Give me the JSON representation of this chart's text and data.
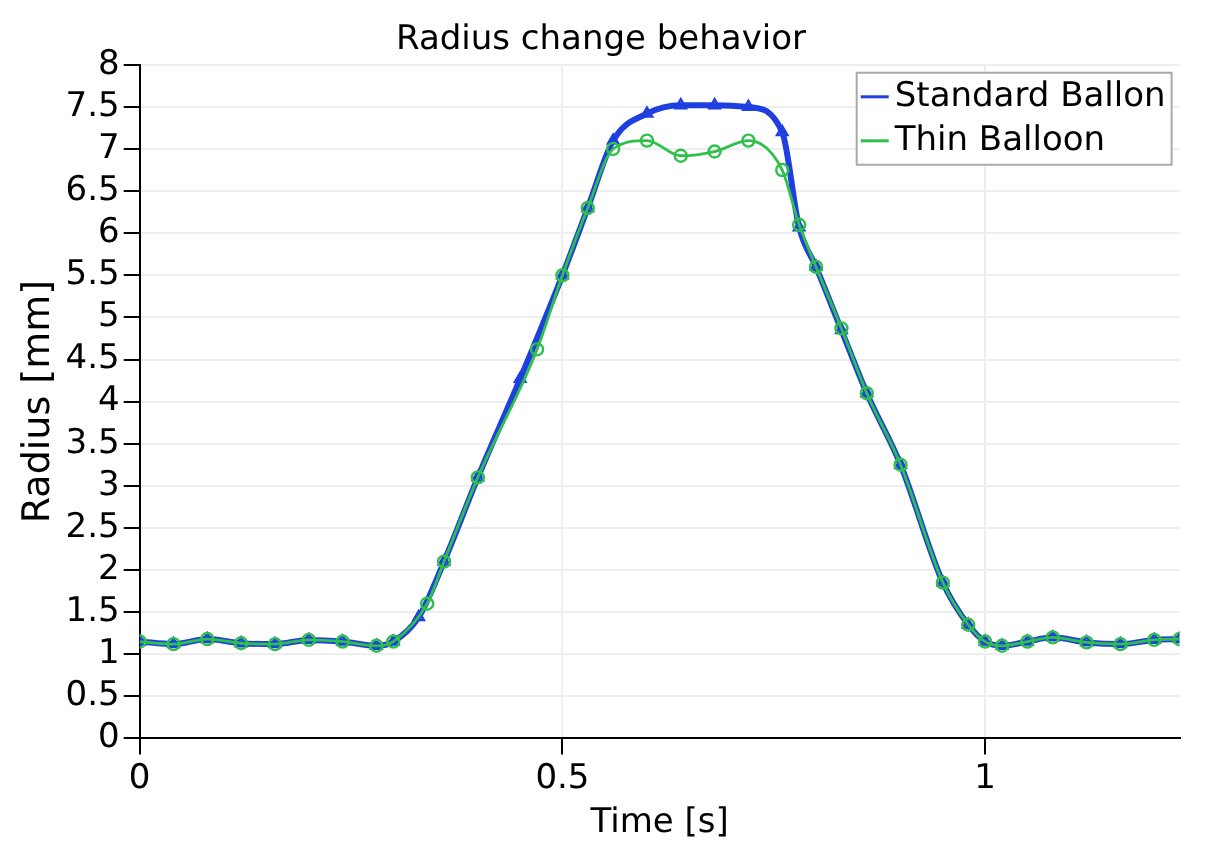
{
  "chart_data": {
    "type": "line",
    "title": "Radius change behavior",
    "xlabel": "Time [s]",
    "ylabel": "Radius [mm]",
    "xlim": [
      0,
      1.23
    ],
    "xticks": [
      0,
      0.5,
      1
    ],
    "ylim": [
      0,
      8
    ],
    "yticks": [
      0,
      0.5,
      1,
      1.5,
      2,
      2.5,
      3,
      3.5,
      4,
      4.5,
      5,
      5.5,
      6,
      6.5,
      7,
      7.5,
      8
    ],
    "grid": true,
    "legend": "top right",
    "line_style": "solid",
    "series": [
      {
        "name": "Standard Ballon",
        "color": "#1f3fe0",
        "marker": "triangle",
        "x": [
          0,
          0.04,
          0.08,
          0.12,
          0.16,
          0.2,
          0.24,
          0.28,
          0.3,
          0.33,
          0.36,
          0.4,
          0.45,
          0.5,
          0.53,
          0.56,
          0.6,
          0.64,
          0.68,
          0.72,
          0.76,
          0.78,
          0.8,
          0.83,
          0.86,
          0.9,
          0.95,
          0.98,
          1.0,
          1.02,
          1.05,
          1.08,
          1.12,
          1.16,
          1.2,
          1.23
        ],
        "values": [
          1.15,
          1.12,
          1.18,
          1.13,
          1.12,
          1.17,
          1.15,
          1.1,
          1.15,
          1.44,
          2.1,
          3.1,
          4.27,
          5.5,
          6.3,
          7.1,
          7.42,
          7.52,
          7.52,
          7.5,
          7.2,
          6.07,
          5.6,
          4.85,
          4.1,
          3.25,
          1.85,
          1.35,
          1.15,
          1.1,
          1.15,
          1.2,
          1.14,
          1.12,
          1.17,
          1.18
        ]
      },
      {
        "name": "Thin Balloon",
        "color": "#2ec04a",
        "marker": "circle",
        "x": [
          0,
          0.04,
          0.08,
          0.12,
          0.16,
          0.2,
          0.24,
          0.28,
          0.3,
          0.34,
          0.36,
          0.4,
          0.47,
          0.5,
          0.53,
          0.56,
          0.6,
          0.64,
          0.68,
          0.72,
          0.76,
          0.78,
          0.8,
          0.83,
          0.86,
          0.9,
          0.95,
          0.98,
          1.0,
          1.02,
          1.05,
          1.08,
          1.12,
          1.16,
          1.2,
          1.23
        ],
        "values": [
          1.15,
          1.12,
          1.18,
          1.13,
          1.12,
          1.17,
          1.15,
          1.1,
          1.15,
          1.6,
          2.1,
          3.1,
          4.62,
          5.5,
          6.3,
          7.0,
          7.1,
          6.92,
          6.97,
          7.1,
          6.75,
          6.1,
          5.6,
          4.87,
          4.1,
          3.25,
          1.85,
          1.35,
          1.15,
          1.1,
          1.15,
          1.2,
          1.14,
          1.12,
          1.17,
          1.18
        ]
      }
    ]
  }
}
